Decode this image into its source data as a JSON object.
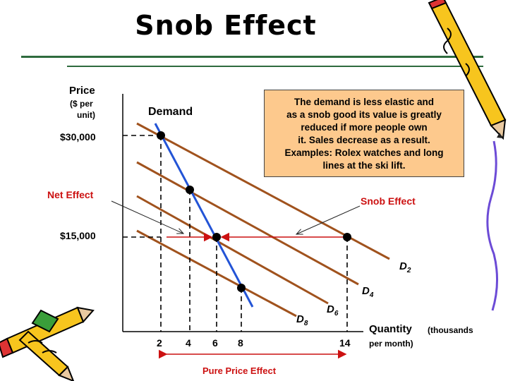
{
  "title": "Snob Effect",
  "callout_lines": [
    "The demand is less elastic and",
    "as a snob good its value is greatly",
    "reduced if more people own",
    "it. Sales decrease as a result.",
    "Examples: Rolex watches and long",
    "lines at the ski lift."
  ],
  "axes": {
    "y_label": "Price",
    "y_sublabel_1": "($ per",
    "y_sublabel_2": "unit)",
    "x_label": "Quantity",
    "x_unit_1": "(thousands",
    "x_unit_2": "per month)",
    "y_ticks": [
      "$30,000",
      "$15,000"
    ],
    "x_ticks": [
      "2",
      "4",
      "6",
      "8",
      "14"
    ]
  },
  "labels": {
    "demand": "Demand",
    "net_effect": "Net Effect",
    "snob_effect": "Snob Effect",
    "pure_price_effect": "Pure Price Effect"
  },
  "curves": [
    {
      "name": "D",
      "sub": "2"
    },
    {
      "name": "D",
      "sub": "4"
    },
    {
      "name": "D",
      "sub": "6"
    },
    {
      "name": "D",
      "sub": "8"
    }
  ],
  "colors": {
    "curve": "#a0521d",
    "demand": "#2354d6",
    "arrow": "#cc1111",
    "callout": "#fdc98d",
    "rule": "#2e6b3e"
  }
}
